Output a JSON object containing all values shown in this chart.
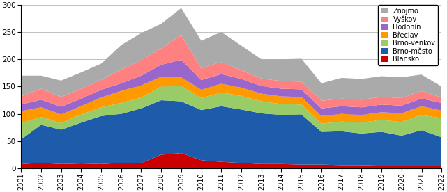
{
  "years": [
    2001,
    2002,
    2003,
    2004,
    2005,
    2006,
    2007,
    2008,
    2009,
    2010,
    2011,
    2012,
    2013,
    2014,
    2015,
    2016,
    2017,
    2018,
    2019,
    2020,
    2021,
    2022
  ],
  "series": {
    "Blansko": [
      8,
      10,
      8,
      9,
      8,
      10,
      10,
      25,
      28,
      15,
      12,
      10,
      8,
      8,
      7,
      7,
      6,
      6,
      5,
      5,
      5,
      5
    ],
    "Brno-město": [
      45,
      70,
      63,
      75,
      88,
      90,
      100,
      100,
      95,
      92,
      102,
      98,
      93,
      90,
      92,
      60,
      62,
      58,
      62,
      55,
      65,
      52
    ],
    "Brno-venkov": [
      30,
      14,
      12,
      15,
      16,
      20,
      20,
      25,
      28,
      22,
      25,
      25,
      22,
      20,
      18,
      15,
      18,
      20,
      22,
      25,
      28,
      35
    ],
    "Břeclav": [
      22,
      18,
      16,
      15,
      18,
      22,
      22,
      18,
      16,
      15,
      16,
      15,
      14,
      14,
      14,
      14,
      14,
      14,
      14,
      16,
      16,
      14
    ],
    "Hodonín": [
      12,
      14,
      14,
      14,
      14,
      14,
      18,
      22,
      32,
      18,
      18,
      16,
      14,
      14,
      14,
      14,
      14,
      14,
      14,
      14,
      14,
      14
    ],
    "Vyškov": [
      15,
      20,
      18,
      18,
      18,
      25,
      28,
      30,
      45,
      22,
      22,
      16,
      14,
      14,
      14,
      14,
      14,
      14,
      14,
      14,
      14,
      10
    ],
    "Znojmo": [
      38,
      24,
      30,
      30,
      30,
      45,
      50,
      45,
      50,
      50,
      55,
      45,
      35,
      40,
      42,
      32,
      38,
      38,
      38,
      38,
      30,
      20
    ]
  },
  "colors": {
    "Blansko": "#cc0000",
    "Brno-město": "#1f5bab",
    "Brno-venkov": "#99cc66",
    "Břeclav": "#ff9900",
    "Hodonín": "#9966cc",
    "Vyškov": "#ff8080",
    "Znojmo": "#aaaaaa"
  },
  "stack_order": [
    "Blansko",
    "Brno-město",
    "Brno-venkov",
    "Břeclav",
    "Hodonín",
    "Vyškov",
    "Znojmo"
  ],
  "legend_order": [
    "Znojmo",
    "Vyškov",
    "Hodonín",
    "Břeclav",
    "Brno-venkov",
    "Brno-město",
    "Blansko"
  ],
  "ylim": [
    0,
    300
  ],
  "yticks": [
    0,
    50,
    100,
    150,
    200,
    250,
    300
  ],
  "bg_color": "#ffffff",
  "grid_color": "#c0c0c0"
}
